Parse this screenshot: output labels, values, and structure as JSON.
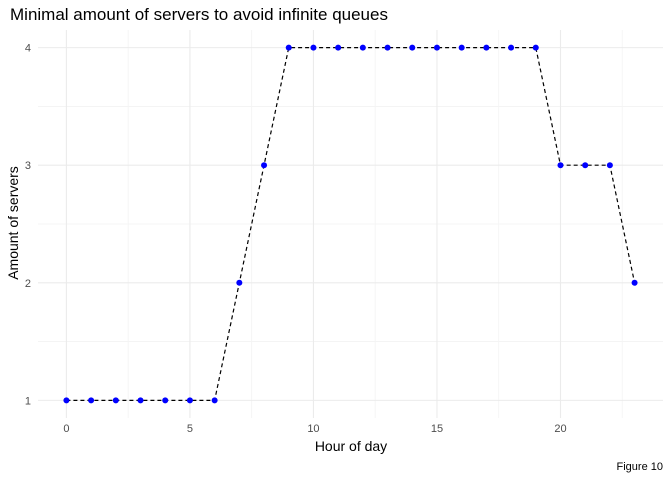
{
  "chart_data": {
    "type": "line",
    "title": "Minimal amount of servers to avoid infinite queues",
    "xlabel": "Hour of day",
    "ylabel": "Amount of servers",
    "caption": "Figure 10",
    "x": [
      0,
      1,
      2,
      3,
      4,
      5,
      6,
      7,
      8,
      9,
      10,
      11,
      12,
      13,
      14,
      15,
      16,
      17,
      18,
      19,
      20,
      21,
      22,
      23
    ],
    "values": [
      1,
      1,
      1,
      1,
      1,
      1,
      1,
      2,
      3,
      4,
      4,
      4,
      4,
      4,
      4,
      4,
      4,
      4,
      4,
      4,
      3,
      3,
      3,
      2
    ],
    "xlim": [
      -1.15,
      24.15
    ],
    "ylim": [
      0.85,
      4.15
    ],
    "xticks": [
      0,
      5,
      10,
      15,
      20
    ],
    "yticks": [
      1,
      2,
      3,
      4
    ],
    "xticks_minor": [
      2.5,
      7.5,
      12.5,
      17.5,
      22.5
    ],
    "yticks_minor": [
      1.5,
      2.5,
      3.5
    ],
    "grid": true,
    "line_color": "#000000",
    "line_style": "dashed",
    "point_color": "#0000ff"
  }
}
